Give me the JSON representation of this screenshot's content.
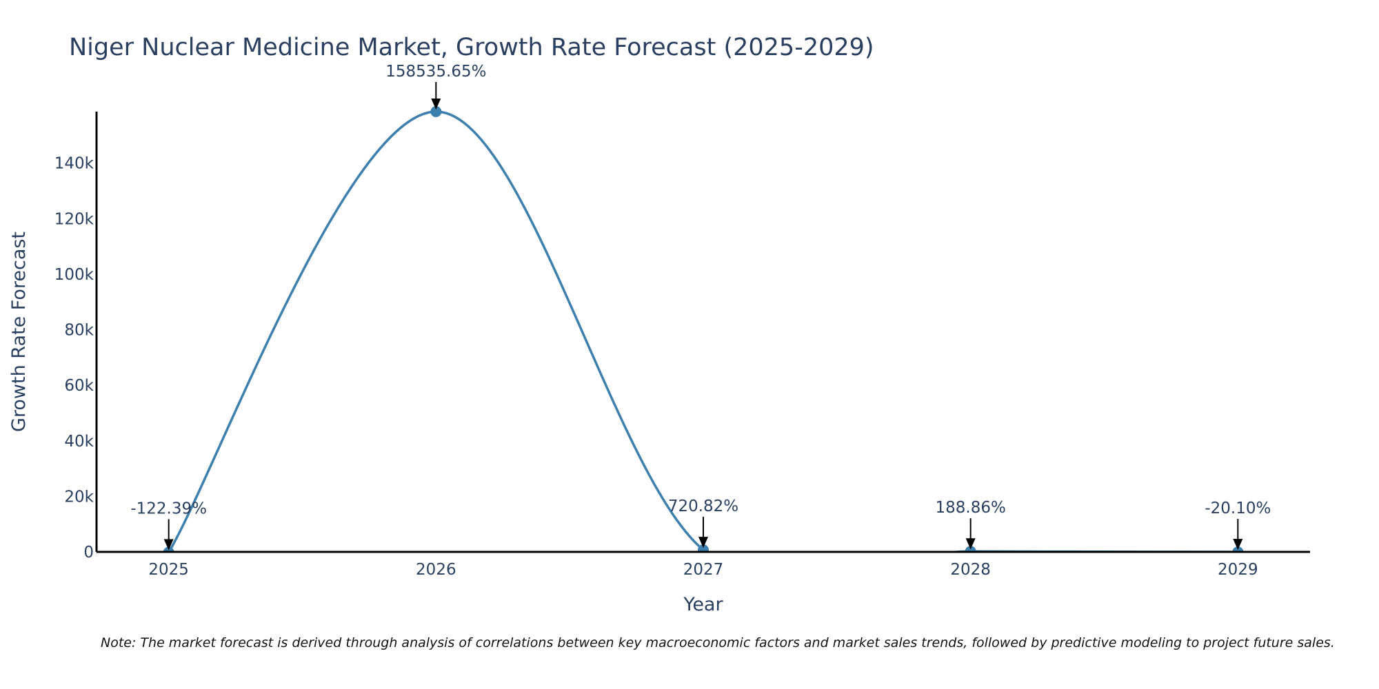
{
  "chart_data": {
    "type": "line",
    "title": "Niger Nuclear Medicine Market, Growth Rate Forecast (2025-2029)",
    "xlabel": "Year",
    "ylabel": "Growth Rate Forecast",
    "x": [
      2025,
      2026,
      2027,
      2028,
      2029
    ],
    "x_tick_labels": [
      "2025",
      "2026",
      "2027",
      "2028",
      "2029"
    ],
    "series": [
      {
        "name": "Growth Rate Forecast",
        "values": [
          -122.39,
          158535.65,
          720.82,
          188.86,
          -20.1
        ],
        "color": "#3d7fad",
        "line_shape": "spline"
      }
    ],
    "annotations": [
      "-122.39%",
      "158535.65%",
      "720.82%",
      "188.86%",
      "-20.10%"
    ],
    "y_ticks": [
      0,
      20000,
      40000,
      60000,
      80000,
      100000,
      120000,
      140000
    ],
    "y_tick_labels": [
      "0",
      "20k",
      "40k",
      "60k",
      "80k",
      "100k",
      "120k",
      "140k"
    ],
    "xlim": [
      2024.73,
      2029.27
    ],
    "ylim": [
      0,
      158535.65
    ],
    "grid": false,
    "legend": "none",
    "note": "Note: The market forecast is derived through analysis of correlations between key macroeconomic factors and market sales trends, followed by predictive modeling to project future sales."
  },
  "colors": {
    "line": "#3d7fad",
    "axis": "#000000",
    "text": "#2a3f5f",
    "arrow": "#000000"
  }
}
